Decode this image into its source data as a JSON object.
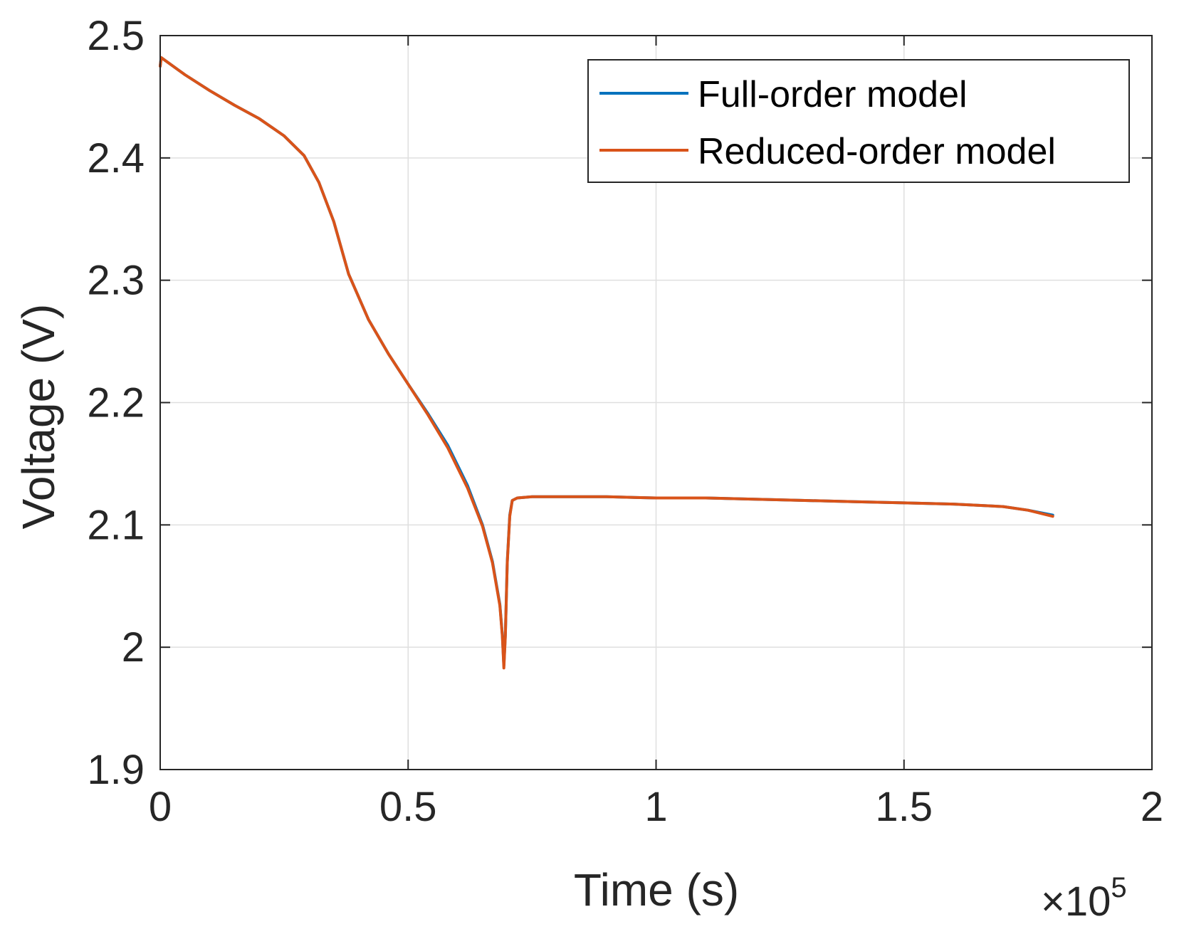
{
  "chart_data": {
    "type": "line",
    "xlabel": "Time (s)",
    "ylabel": "Voltage (V)",
    "x_exponent_label": "×10",
    "x_exponent_power": "5",
    "xlim": [
      0,
      2
    ],
    "ylim": [
      1.9,
      2.5
    ],
    "x_ticks": [
      "0",
      "0.5",
      "1",
      "1.5",
      "2"
    ],
    "y_ticks": [
      "1.9",
      "2",
      "2.1",
      "2.2",
      "2.3",
      "2.4",
      "2.5"
    ],
    "grid": true,
    "box": true,
    "legend_position": "top-right",
    "series": [
      {
        "name": "Full-order model",
        "color": "#0072BD",
        "x": [
          0,
          0.002,
          0.05,
          0.1,
          0.15,
          0.2,
          0.25,
          0.29,
          0.32,
          0.35,
          0.38,
          0.42,
          0.46,
          0.5,
          0.54,
          0.58,
          0.62,
          0.65,
          0.67,
          0.685,
          0.69,
          0.693,
          0.696,
          0.7,
          0.705,
          0.71,
          0.72,
          0.75,
          0.8,
          0.9,
          1.0,
          1.1,
          1.2,
          1.3,
          1.4,
          1.5,
          1.6,
          1.7,
          1.75,
          1.8
        ],
        "y": [
          2.475,
          2.482,
          2.468,
          2.455,
          2.443,
          2.432,
          2.418,
          2.402,
          2.38,
          2.348,
          2.305,
          2.268,
          2.24,
          2.215,
          2.191,
          2.165,
          2.132,
          2.1,
          2.07,
          2.035,
          2.01,
          1.985,
          2.01,
          2.07,
          2.108,
          2.12,
          2.122,
          2.123,
          2.123,
          2.123,
          2.122,
          2.122,
          2.121,
          2.12,
          2.119,
          2.118,
          2.117,
          2.115,
          2.112,
          2.108
        ]
      },
      {
        "name": "Reduced-order model",
        "color": "#D95319",
        "x": [
          0,
          0.002,
          0.05,
          0.1,
          0.15,
          0.2,
          0.25,
          0.29,
          0.32,
          0.35,
          0.38,
          0.42,
          0.46,
          0.5,
          0.54,
          0.58,
          0.62,
          0.65,
          0.67,
          0.685,
          0.69,
          0.693,
          0.696,
          0.7,
          0.705,
          0.71,
          0.72,
          0.75,
          0.8,
          0.9,
          1.0,
          1.1,
          1.2,
          1.3,
          1.4,
          1.5,
          1.6,
          1.7,
          1.75,
          1.8
        ],
        "y": [
          2.475,
          2.482,
          2.468,
          2.455,
          2.443,
          2.432,
          2.418,
          2.402,
          2.38,
          2.348,
          2.305,
          2.268,
          2.24,
          2.215,
          2.19,
          2.163,
          2.13,
          2.099,
          2.069,
          2.034,
          2.009,
          1.983,
          2.009,
          2.069,
          2.107,
          2.12,
          2.122,
          2.123,
          2.123,
          2.123,
          2.122,
          2.122,
          2.121,
          2.12,
          2.119,
          2.118,
          2.117,
          2.115,
          2.112,
          2.107
        ]
      }
    ]
  }
}
